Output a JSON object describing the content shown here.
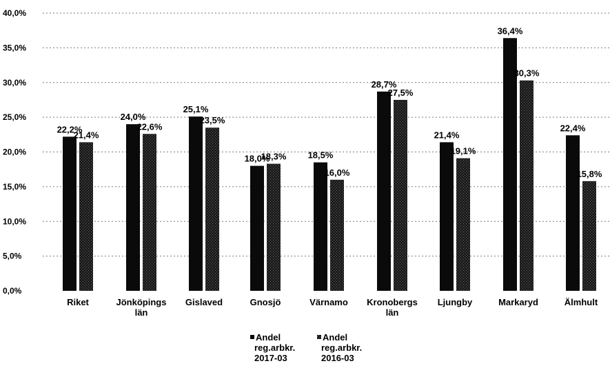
{
  "chart_data": {
    "type": "bar",
    "categories": [
      [
        "Riket"
      ],
      [
        "Jönköpings",
        "län"
      ],
      [
        "Gislaved"
      ],
      [
        "Gnosjö"
      ],
      [
        "Värnamo"
      ],
      [
        "Kronobergs",
        "län"
      ],
      [
        "Ljungby"
      ],
      [
        "Markaryd"
      ],
      [
        "Älmhult"
      ]
    ],
    "series": [
      {
        "name_lines": [
          "Andel",
          "reg.arbkr.",
          "2017-03"
        ],
        "color": "#0a0a0a",
        "values": [
          22.2,
          24.0,
          25.1,
          18.0,
          18.5,
          28.7,
          21.4,
          36.4,
          22.4
        ],
        "labels": [
          "22,2%",
          "24,0%",
          "25,1%",
          "18,0%",
          "18,5%",
          "28,7%",
          "21,4%",
          "36,4%",
          "22,4%"
        ]
      },
      {
        "name_lines": [
          "Andel",
          "reg.arbkr.",
          "2016-03"
        ],
        "color": "#2a2a2a",
        "values": [
          21.4,
          22.6,
          23.5,
          18.3,
          16.0,
          27.5,
          19.1,
          30.3,
          15.8
        ],
        "labels": [
          "21,4%",
          "22,6%",
          "23,5%",
          "18,3%",
          "16,0%",
          "27,5%",
          "19,1%",
          "30,3%",
          "15,8%"
        ]
      }
    ],
    "y_ticks": [
      0,
      5,
      10,
      15,
      20,
      25,
      30,
      35,
      40
    ],
    "y_tick_labels": [
      "0,0%",
      "5,0%",
      "10,0%",
      "15,0%",
      "20,0%",
      "25,0%",
      "30,0%",
      "35,0%",
      "40,0%"
    ],
    "ylim": [
      0,
      40
    ],
    "grid": true,
    "legend_position": "bottom"
  }
}
